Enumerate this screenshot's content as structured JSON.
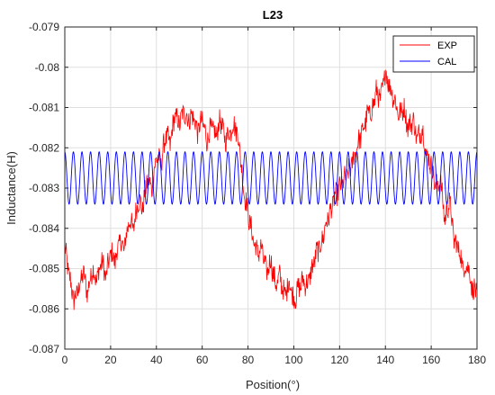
{
  "chart_data": {
    "type": "line",
    "title": "L23",
    "xlabel": "Position(°)",
    "ylabel": "Inductance(H)",
    "xlim": [
      0,
      180
    ],
    "ylim": [
      -0.087,
      -0.079
    ],
    "x_ticks": [
      "0",
      "20",
      "40",
      "60",
      "80",
      "100",
      "120",
      "140",
      "160",
      "180"
    ],
    "x_tick_values": [
      0,
      20,
      40,
      60,
      80,
      100,
      120,
      140,
      160,
      180
    ],
    "y_ticks": [
      "-0.079",
      "-0.08",
      "-0.081",
      "-0.082",
      "-0.083",
      "-0.084",
      "-0.085",
      "-0.086",
      "-0.087"
    ],
    "y_tick_values": [
      -0.079,
      -0.08,
      -0.081,
      -0.082,
      -0.083,
      -0.084,
      -0.085,
      -0.086,
      -0.087
    ],
    "grid": true,
    "legend_position": "top-right",
    "series": [
      {
        "name": "EXP",
        "color": "#ff0000",
        "x": [
          0,
          2,
          4,
          6,
          8,
          10,
          12,
          14,
          16,
          18,
          20,
          22,
          24,
          26,
          28,
          30,
          32,
          34,
          36,
          38,
          40,
          42,
          44,
          46,
          48,
          50,
          52,
          54,
          56,
          58,
          60,
          62,
          64,
          66,
          68,
          70,
          72,
          74,
          76,
          78,
          80,
          82,
          84,
          86,
          88,
          90,
          92,
          94,
          96,
          98,
          100,
          102,
          104,
          106,
          108,
          110,
          112,
          114,
          116,
          118,
          120,
          122,
          124,
          126,
          128,
          130,
          132,
          134,
          136,
          138,
          140,
          142,
          144,
          146,
          148,
          150,
          152,
          154,
          156,
          158,
          160,
          162,
          164,
          166,
          168,
          170,
          172,
          174,
          176,
          178,
          180
        ],
        "y": [
          -0.0845,
          -0.0852,
          -0.0858,
          -0.0855,
          -0.0851,
          -0.0856,
          -0.085,
          -0.0853,
          -0.0848,
          -0.0852,
          -0.0846,
          -0.0848,
          -0.0843,
          -0.0845,
          -0.0838,
          -0.084,
          -0.0833,
          -0.0835,
          -0.0828,
          -0.083,
          -0.0822,
          -0.0824,
          -0.0817,
          -0.0819,
          -0.0812,
          -0.0814,
          -0.0811,
          -0.0813,
          -0.0812,
          -0.0816,
          -0.0813,
          -0.0818,
          -0.0815,
          -0.0817,
          -0.0813,
          -0.0818,
          -0.0816,
          -0.0814,
          -0.0818,
          -0.083,
          -0.0836,
          -0.0842,
          -0.0846,
          -0.0845,
          -0.0851,
          -0.0848,
          -0.0854,
          -0.0852,
          -0.0857,
          -0.0853,
          -0.0858,
          -0.0855,
          -0.0853,
          -0.0854,
          -0.085,
          -0.0846,
          -0.0844,
          -0.0839,
          -0.0836,
          -0.0832,
          -0.083,
          -0.0828,
          -0.0826,
          -0.0823,
          -0.0819,
          -0.0816,
          -0.0812,
          -0.0811,
          -0.0806,
          -0.0808,
          -0.0801,
          -0.0805,
          -0.0808,
          -0.0812,
          -0.081,
          -0.0815,
          -0.0813,
          -0.0818,
          -0.0815,
          -0.0822,
          -0.0824,
          -0.083,
          -0.0828,
          -0.0838,
          -0.0833,
          -0.0843,
          -0.0845,
          -0.085,
          -0.0849,
          -0.0855,
          -0.0856
        ]
      },
      {
        "name": "CAL",
        "color": "#0000ff",
        "amplitude_upper": -0.0821,
        "amplitude_lower": -0.0834,
        "mean": -0.08275,
        "period_degrees": 3.75
      }
    ]
  }
}
